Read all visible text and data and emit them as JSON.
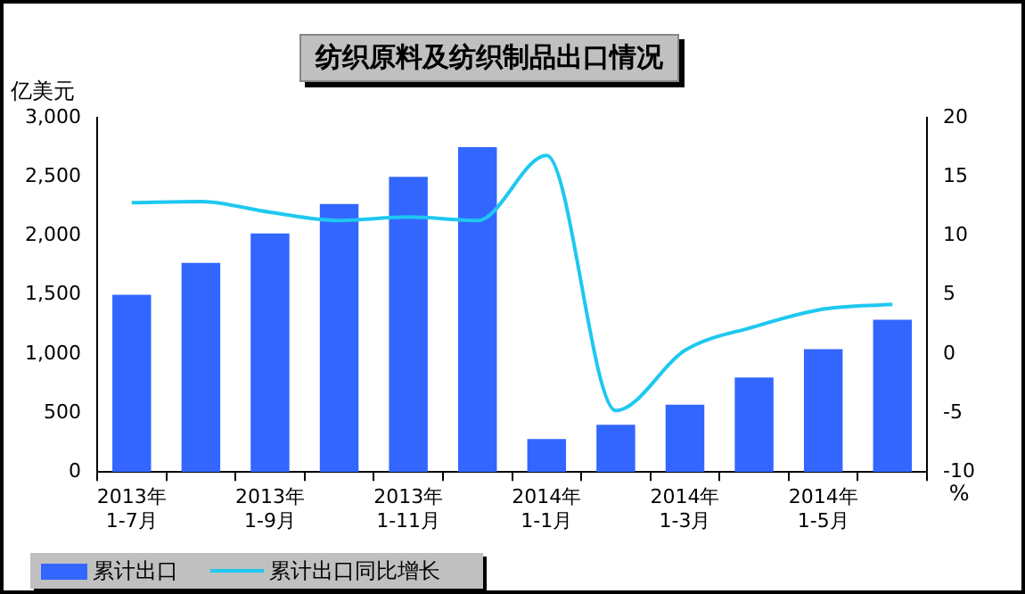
{
  "chart_data": {
    "type": "bar",
    "title": "纺织原料及纺织制品出口情况",
    "ylabel": "亿美元",
    "y2label": "%",
    "categories": [
      "2013年\n1-7月",
      null,
      "2013年\n1-9月",
      null,
      "2013年\n1-11月",
      null,
      "2014年\n1-1月",
      null,
      "2014年\n1-3月",
      null,
      "2014年\n1-5月",
      null
    ],
    "series": [
      {
        "name": "累计出口",
        "color": "#3366ff",
        "values": [
          1500,
          1770,
          2020,
          2270,
          2500,
          2750,
          280,
          400,
          570,
          800,
          1040,
          1290
        ]
      },
      {
        "name": "累计出口同比增长",
        "type": "line",
        "axis": "y2",
        "color": "#1ec8f0",
        "marker": "none",
        "values": [
          12.8,
          12.9,
          12.0,
          11.3,
          11.6,
          11.3,
          16.8,
          -4.8,
          0.3,
          2.3,
          3.8,
          4.2
        ]
      }
    ],
    "ylim": [
      0,
      3000
    ],
    "yticks": [
      0,
      500,
      {
        "value": 1000,
        "label": "1,000"
      },
      {
        "value": 1500,
        "label": "1,500"
      },
      {
        "value": 2000,
        "label": "2,000"
      },
      {
        "value": 2500,
        "label": "2,500"
      },
      {
        "value": 3000,
        "label": "3,000"
      }
    ],
    "y2lim": [
      -10,
      20
    ],
    "y2ticks": [
      -10,
      -5,
      0,
      5,
      10,
      15,
      20
    ],
    "grid": false,
    "legend": "bottom"
  }
}
